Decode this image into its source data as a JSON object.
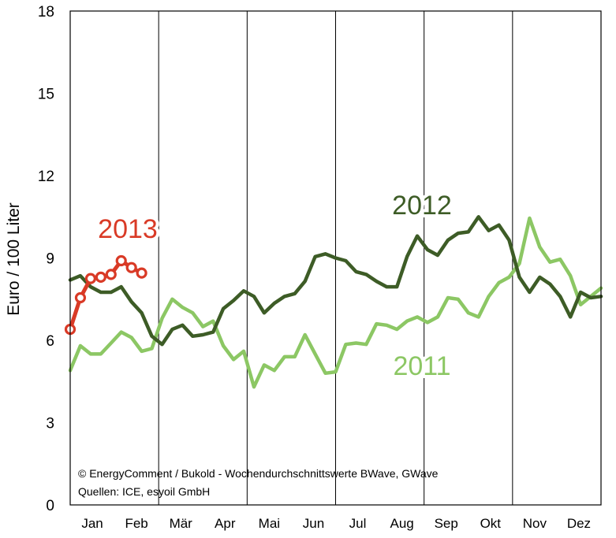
{
  "chart_data": {
    "type": "line",
    "ylabel": "Euro / 100 Liter",
    "ylim": [
      0,
      18
    ],
    "yticks": [
      "0",
      "3",
      "6",
      "9",
      "12",
      "15",
      "18"
    ],
    "x_unit": "week",
    "xlim": [
      1,
      53
    ],
    "months": [
      "Jan",
      "Feb",
      "Mär",
      "Apr",
      "Mai",
      "Jun",
      "Jul",
      "Aug",
      "Sep",
      "Okt",
      "Nov",
      "Dez"
    ],
    "grid_vertical_after_months": [
      "Feb",
      "Apr",
      "Jun",
      "Aug",
      "Okt"
    ],
    "source_lines": [
      "© EnergyComment / Bukold - Wochendurchschnittswerte BWave, GWave",
      "Quellen: ICE, esyoil GmbH"
    ],
    "series": [
      {
        "name": "2011",
        "color": "#8cc764",
        "markers": false,
        "x": [
          1,
          2,
          3,
          4,
          5,
          6,
          7,
          8,
          9,
          10,
          11,
          12,
          13,
          14,
          15,
          16,
          17,
          18,
          19,
          20,
          21,
          22,
          23,
          24,
          25,
          26,
          27,
          28,
          29,
          30,
          31,
          32,
          33,
          34,
          35,
          36,
          37,
          38,
          39,
          40,
          41,
          42,
          43,
          44,
          45,
          46,
          47,
          48,
          49,
          50,
          51,
          52,
          53
        ],
        "values": [
          4.9,
          5.8,
          5.5,
          5.5,
          5.9,
          6.3,
          6.1,
          5.6,
          5.7,
          6.8,
          7.5,
          7.2,
          7.0,
          6.5,
          6.7,
          5.8,
          5.3,
          5.6,
          4.3,
          5.1,
          4.9,
          5.4,
          5.4,
          6.2,
          5.5,
          4.8,
          4.85,
          5.85,
          5.9,
          5.85,
          6.6,
          6.55,
          6.4,
          6.7,
          6.85,
          6.65,
          6.85,
          7.55,
          7.5,
          7.0,
          6.85,
          7.6,
          8.1,
          8.3,
          8.8,
          10.45,
          9.4,
          8.85,
          8.95,
          8.35,
          7.3,
          7.6,
          7.9
        ]
      },
      {
        "name": "2012",
        "color": "#3d5c26",
        "markers": false,
        "x": [
          1,
          2,
          3,
          4,
          5,
          6,
          7,
          8,
          9,
          10,
          11,
          12,
          13,
          14,
          15,
          16,
          17,
          18,
          19,
          20,
          21,
          22,
          23,
          24,
          25,
          26,
          27,
          28,
          29,
          30,
          31,
          32,
          33,
          34,
          35,
          36,
          37,
          38,
          39,
          40,
          41,
          42,
          43,
          44,
          45,
          46,
          47,
          48,
          49,
          50,
          51,
          52,
          53
        ],
        "values": [
          8.2,
          8.35,
          7.95,
          7.75,
          7.75,
          7.95,
          7.4,
          7.0,
          6.15,
          5.85,
          6.4,
          6.55,
          6.15,
          6.2,
          6.3,
          7.15,
          7.45,
          7.8,
          7.6,
          7.0,
          7.35,
          7.6,
          7.7,
          8.15,
          9.05,
          9.15,
          9.0,
          8.9,
          8.5,
          8.4,
          8.15,
          7.95,
          7.95,
          9.05,
          9.8,
          9.3,
          9.1,
          9.65,
          9.9,
          9.95,
          10.5,
          10.0,
          10.2,
          9.65,
          8.3,
          7.75,
          8.3,
          8.05,
          7.6,
          6.85,
          7.75,
          7.55,
          7.6
        ]
      },
      {
        "name": "2013",
        "color": "#d93a26",
        "markers": true,
        "x": [
          1,
          2,
          3,
          4,
          5,
          6,
          7,
          8
        ],
        "values": [
          6.4,
          7.55,
          8.25,
          8.3,
          8.4,
          8.9,
          8.65,
          8.45
        ]
      }
    ]
  }
}
